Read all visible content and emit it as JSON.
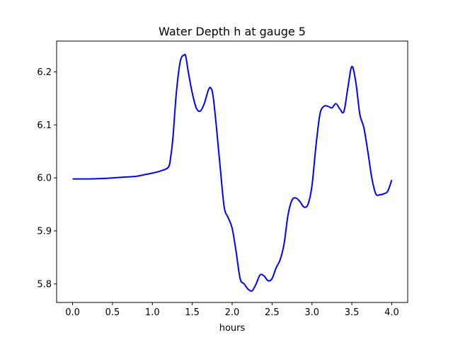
{
  "chart_data": {
    "type": "line",
    "title": "Water Depth h at gauge 5",
    "xlabel": "hours",
    "ylabel": "",
    "xlim": [
      -0.2,
      4.2
    ],
    "ylim": [
      5.765,
      6.258
    ],
    "x_ticks": [
      0.0,
      0.5,
      1.0,
      1.5,
      2.0,
      2.5,
      3.0,
      3.5,
      4.0
    ],
    "x_tick_labels": [
      "0.0",
      "0.5",
      "1.0",
      "1.5",
      "2.0",
      "2.5",
      "3.0",
      "3.5",
      "4.0"
    ],
    "y_ticks": [
      5.8,
      5.9,
      6.0,
      6.1,
      6.2
    ],
    "y_tick_labels": [
      "5.8",
      "5.9",
      "6.0",
      "6.1",
      "6.2"
    ],
    "grid": false,
    "legend": "none",
    "series": [
      {
        "color": "#0000ff",
        "x": [
          0.0,
          0.2,
          0.4,
          0.6,
          0.8,
          0.9,
          1.0,
          1.1,
          1.2,
          1.23,
          1.26,
          1.3,
          1.35,
          1.4,
          1.42,
          1.45,
          1.5,
          1.55,
          1.6,
          1.65,
          1.7,
          1.73,
          1.76,
          1.8,
          1.85,
          1.9,
          1.95,
          2.0,
          2.05,
          2.1,
          2.15,
          2.2,
          2.25,
          2.3,
          2.35,
          2.4,
          2.45,
          2.5,
          2.55,
          2.6,
          2.65,
          2.7,
          2.75,
          2.8,
          2.85,
          2.9,
          2.95,
          3.0,
          3.05,
          3.1,
          3.15,
          3.2,
          3.25,
          3.3,
          3.35,
          3.4,
          3.45,
          3.5,
          3.55,
          3.6,
          3.65,
          3.7,
          3.75,
          3.8,
          3.85,
          3.9,
          3.95,
          4.0
        ],
        "y": [
          5.998,
          5.998,
          5.999,
          6.001,
          6.003,
          6.006,
          6.009,
          6.013,
          6.02,
          6.04,
          6.08,
          6.16,
          6.22,
          6.232,
          6.228,
          6.2,
          6.16,
          6.132,
          6.126,
          6.14,
          6.165,
          6.17,
          6.155,
          6.1,
          6.02,
          5.945,
          5.925,
          5.905,
          5.86,
          5.81,
          5.8,
          5.79,
          5.787,
          5.8,
          5.817,
          5.815,
          5.806,
          5.81,
          5.83,
          5.845,
          5.875,
          5.93,
          5.958,
          5.962,
          5.955,
          5.945,
          5.95,
          5.985,
          6.06,
          6.12,
          6.135,
          6.135,
          6.132,
          6.14,
          6.13,
          6.125,
          6.17,
          6.21,
          6.18,
          6.12,
          6.095,
          6.05,
          6.0,
          5.97,
          5.968,
          5.97,
          5.975,
          5.996
        ]
      }
    ]
  }
}
